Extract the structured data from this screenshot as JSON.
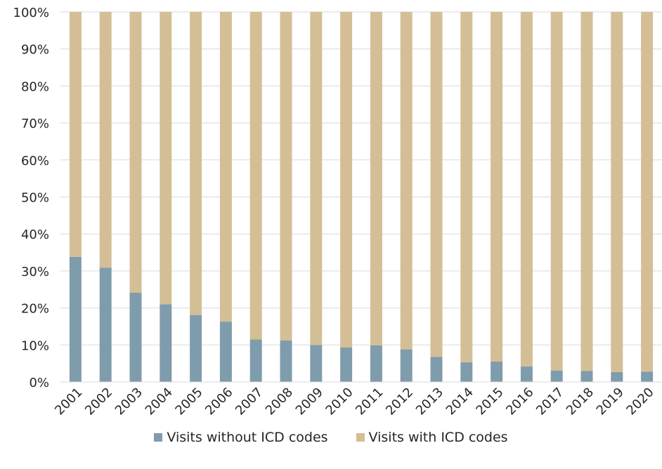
{
  "chart_data": {
    "type": "bar",
    "stacked": true,
    "categories": [
      "2001",
      "2002",
      "2003",
      "2004",
      "2005",
      "2006",
      "2007",
      "2008",
      "2009",
      "2010",
      "2011",
      "2012",
      "2013",
      "2014",
      "2015",
      "2016",
      "2017",
      "2018",
      "2019",
      "2020"
    ],
    "series": [
      {
        "name": "Visits without ICD codes",
        "color": "#7f9cad",
        "values": [
          33.8,
          30.9,
          24.1,
          21.0,
          18.1,
          16.3,
          11.5,
          11.2,
          10.0,
          9.3,
          9.9,
          8.8,
          6.8,
          5.3,
          5.5,
          4.2,
          3.1,
          3.0,
          2.7,
          2.8
        ]
      },
      {
        "name": "Visits with ICD codes",
        "color": "#d4be96",
        "values": [
          66.2,
          69.1,
          75.9,
          79.0,
          81.9,
          83.7,
          88.5,
          88.8,
          90.0,
          90.7,
          90.1,
          91.2,
          93.2,
          94.7,
          94.5,
          95.8,
          96.9,
          97.0,
          97.3,
          97.2
        ]
      }
    ],
    "y_ticks": [
      "0%",
      "10%",
      "20%",
      "30%",
      "40%",
      "50%",
      "60%",
      "70%",
      "80%",
      "90%",
      "100%"
    ],
    "ylim": [
      0,
      100
    ],
    "grid": true,
    "legend_position": "bottom"
  }
}
